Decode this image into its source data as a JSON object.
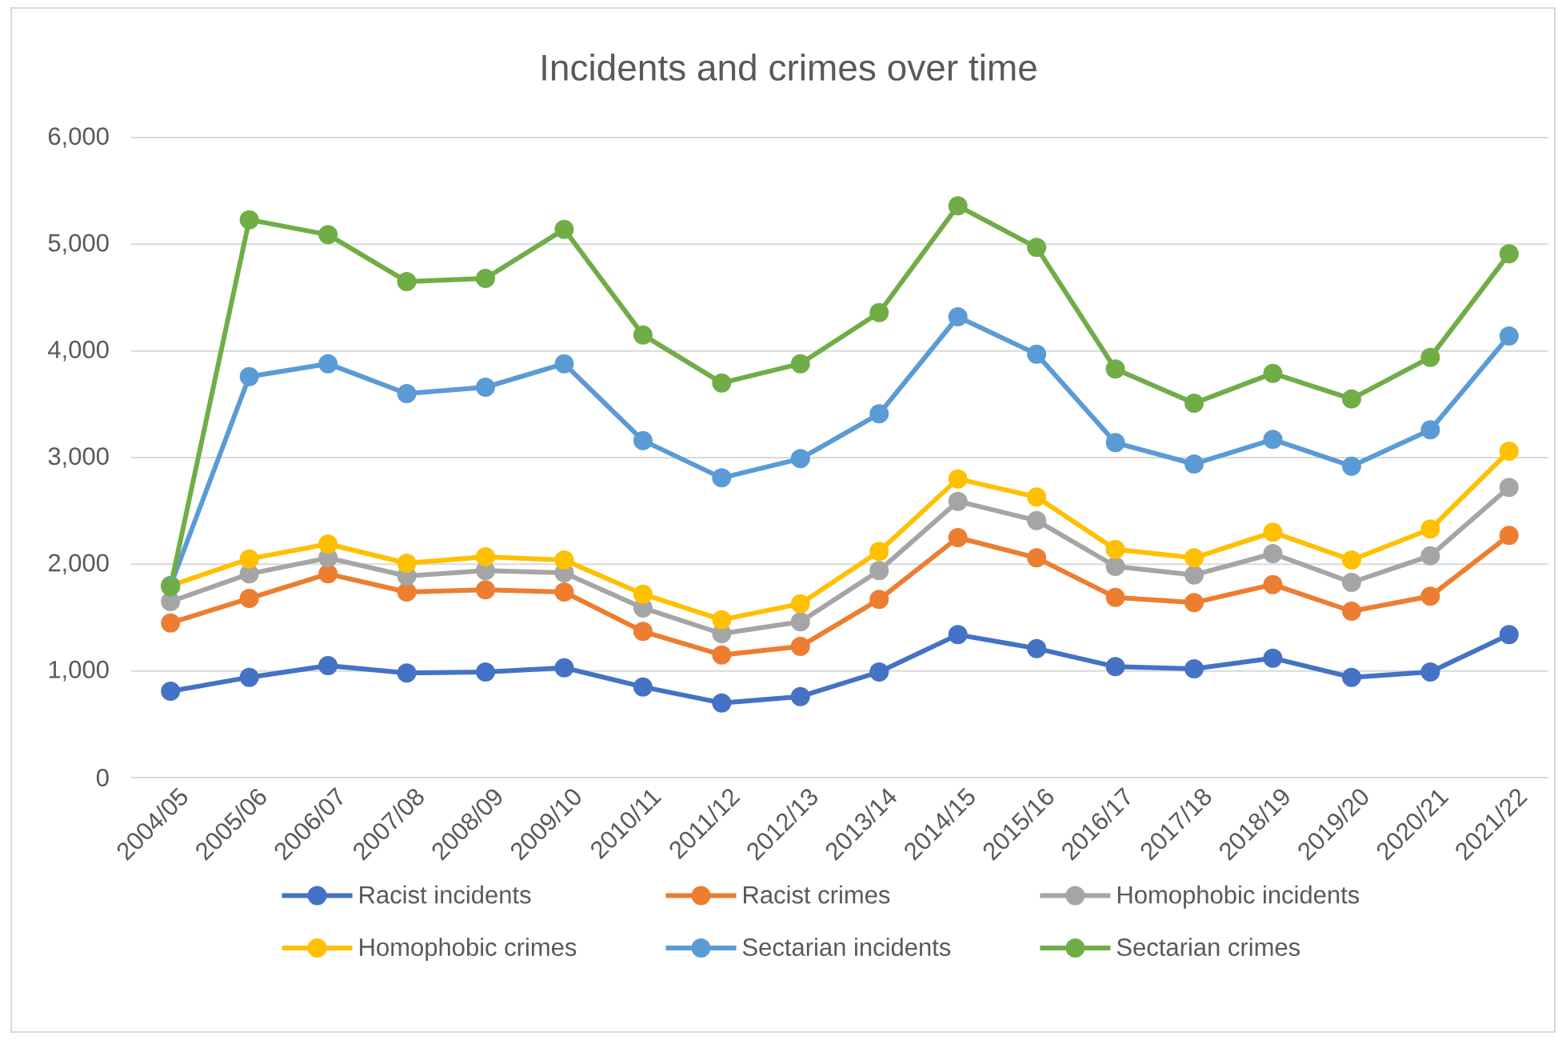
{
  "chart_data": {
    "type": "line",
    "title": "Incidents and crimes over time",
    "categories": [
      "2004/05",
      "2005/06",
      "2006/07",
      "2007/08",
      "2008/09",
      "2009/10",
      "2010/11",
      "2011/12",
      "2012/13",
      "2013/14",
      "2014/15",
      "2015/16",
      "2016/17",
      "2017/18",
      "2018/19",
      "2019/20",
      "2020/21",
      "2021/22"
    ],
    "ylim": [
      0,
      6000
    ],
    "yticks": [
      0,
      {
        "value": 1000,
        "label": "1,000"
      },
      {
        "value": 2000,
        "label": "2,000"
      },
      {
        "value": 3000,
        "label": "3,000"
      },
      {
        "value": 4000,
        "label": "4,000"
      },
      {
        "value": 5000,
        "label": "5,000"
      },
      {
        "value": 6000,
        "label": "6,000"
      }
    ],
    "grid": "y",
    "legend": "bottom",
    "marker": "circle",
    "line_style": "solid",
    "series": [
      {
        "name": "Racist incidents",
        "color": "#4472c4",
        "values": [
          810,
          940,
          1050,
          980,
          990,
          1030,
          850,
          700,
          760,
          990,
          1340,
          1210,
          1040,
          1020,
          1120,
          940,
          990,
          1340
        ]
      },
      {
        "name": "Racist crimes",
        "color": "#ed7d31",
        "values": [
          1450,
          1680,
          1910,
          1740,
          1760,
          1740,
          1370,
          1150,
          1230,
          1670,
          2250,
          2060,
          1690,
          1640,
          1810,
          1560,
          1700,
          2270
        ]
      },
      {
        "name": "Homophobic incidents",
        "color": "#a5a5a5",
        "values": [
          1650,
          1910,
          2060,
          1890,
          1940,
          1920,
          1590,
          1350,
          1460,
          1940,
          2590,
          2410,
          1980,
          1900,
          2100,
          1830,
          2080,
          2720
        ]
      },
      {
        "name": "Homophobic crimes",
        "color": "#ffc000",
        "values": [
          1800,
          2050,
          2190,
          2010,
          2070,
          2040,
          1720,
          1480,
          1630,
          2120,
          2800,
          2630,
          2140,
          2060,
          2300,
          2040,
          2330,
          3060
        ]
      },
      {
        "name": "Sectarian incidents",
        "color": "#5b9bd5",
        "values": [
          1800,
          3760,
          3880,
          3600,
          3660,
          3880,
          3160,
          2810,
          2990,
          3410,
          4320,
          3970,
          3140,
          2940,
          3170,
          2920,
          3260,
          4140
        ]
      },
      {
        "name": "Sectarian crimes",
        "color": "#70ad47",
        "values": [
          1790,
          5230,
          5090,
          4650,
          4680,
          5140,
          4150,
          3700,
          3880,
          4360,
          5360,
          4970,
          3830,
          3510,
          3790,
          3550,
          3940,
          4910
        ]
      }
    ]
  }
}
